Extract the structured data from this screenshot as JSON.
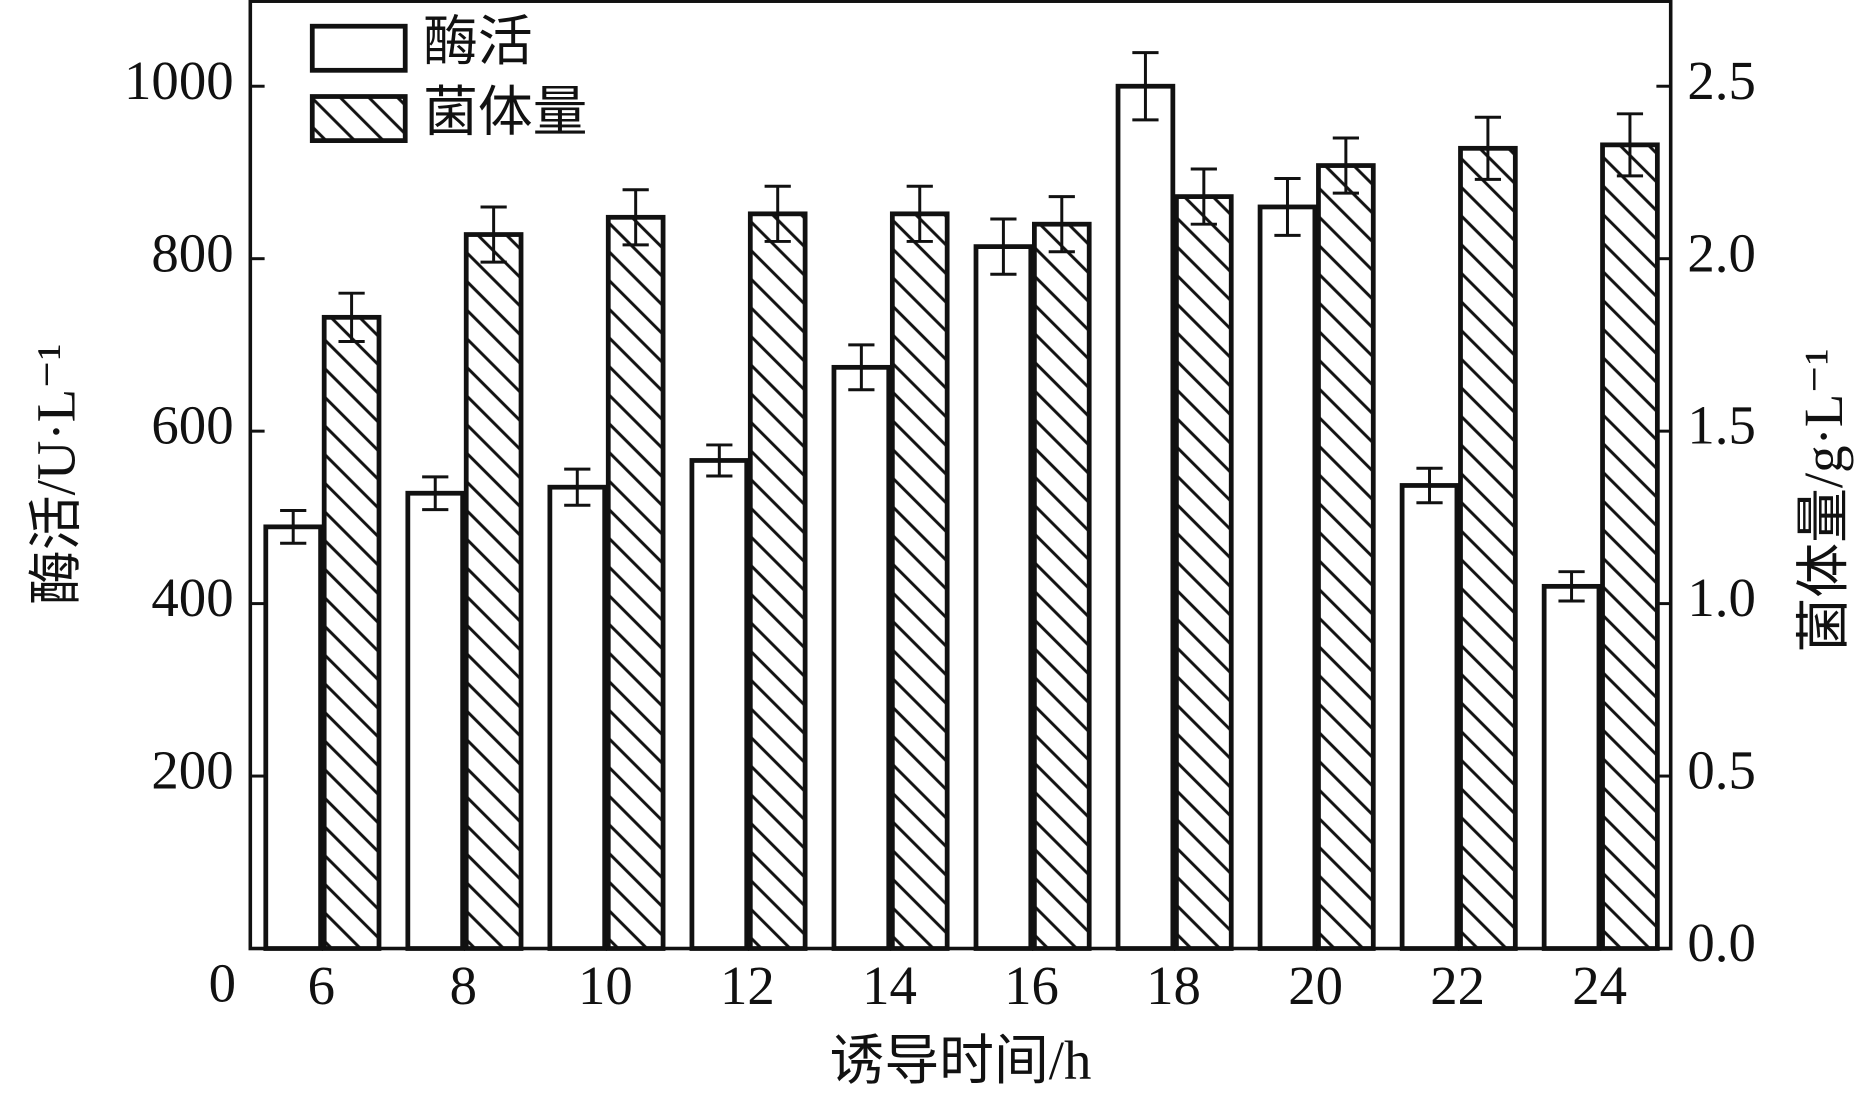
{
  "chart_data": {
    "type": "bar",
    "x_label": "诱导时间/h",
    "y_label": "酶活/U·L⁻¹",
    "y2_label": "菌体量/g·L⁻¹",
    "categories": [
      "6",
      "8",
      "10",
      "12",
      "14",
      "16",
      "18",
      "20",
      "22",
      "24"
    ],
    "series": [
      {
        "name": "酶活",
        "color": "#ffffff",
        "axis": "y",
        "values": [
          489,
          528,
          535,
          566,
          674,
          814,
          1000,
          860,
          537,
          420
        ],
        "errors": [
          19,
          19,
          21,
          18,
          26,
          32,
          39,
          33,
          20,
          17
        ]
      },
      {
        "name": "菌体量",
        "color": "#ffffff",
        "hatch": true,
        "axis": "y2",
        "values": [
          1.83,
          2.07,
          2.12,
          2.13,
          2.13,
          2.1,
          2.18,
          2.27,
          2.32,
          2.33
        ],
        "errors": [
          0.07,
          0.08,
          0.08,
          0.08,
          0.08,
          0.08,
          0.08,
          0.08,
          0.09,
          0.09
        ]
      }
    ],
    "ylim": [
      0,
      1100
    ],
    "yticks": [
      0,
      200,
      400,
      600,
      800,
      1000
    ],
    "y2lim": [
      0,
      2.75
    ],
    "y2ticks": [
      {
        "value": 0,
        "label": "0.0"
      },
      {
        "value": 0.5,
        "label": "0.5"
      },
      {
        "value": 1,
        "label": "1.0"
      },
      {
        "value": 1.5,
        "label": "1.5"
      },
      {
        "value": 2,
        "label": "2.0"
      },
      {
        "value": 2.5,
        "label": "2.5"
      }
    ],
    "legend": "upper left"
  }
}
